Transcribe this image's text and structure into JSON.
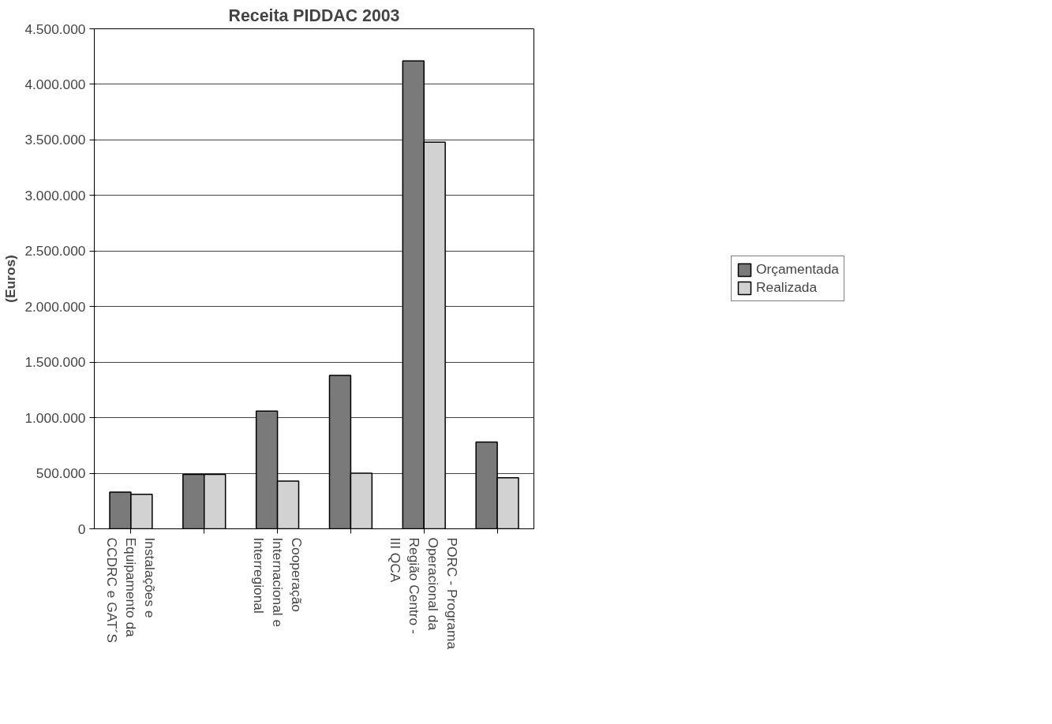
{
  "chart_data": {
    "type": "bar",
    "title": "Receita PIDDAC 2003",
    "ylabel": "(Euros)",
    "categories": [
      "Instalações e Equipamento da CCDRC e GAT´S",
      null,
      "Cooperação Internacional e Interregional",
      null,
      "PORC - Programa Operacional da Região Centro - III QCA",
      null
    ],
    "series": [
      {
        "name": "Orçamentada",
        "color": "#7a7a7a",
        "values": [
          330000,
          490000,
          1060000,
          1380000,
          4210000,
          780000
        ]
      },
      {
        "name": "Realizada",
        "color": "#d2d2d2",
        "values": [
          310000,
          490000,
          430000,
          500000,
          3480000,
          460000
        ]
      }
    ],
    "ylim": [
      0,
      4500000
    ],
    "yticks": [
      {
        "value": 0,
        "label": "0"
      },
      {
        "value": 500000,
        "label": "500.000"
      },
      {
        "value": 1000000,
        "label": "1.000.000"
      },
      {
        "value": 1500000,
        "label": "1.500.000"
      },
      {
        "value": 2000000,
        "label": "2.000.000"
      },
      {
        "value": 2500000,
        "label": "2.500.000"
      },
      {
        "value": 3000000,
        "label": "3.000.000"
      },
      {
        "value": 3500000,
        "label": "3.500.000"
      },
      {
        "value": 4000000,
        "label": "4.000.000"
      },
      {
        "value": 4500000,
        "label": "4.500.000"
      }
    ],
    "grid": "y",
    "legend": "right"
  }
}
